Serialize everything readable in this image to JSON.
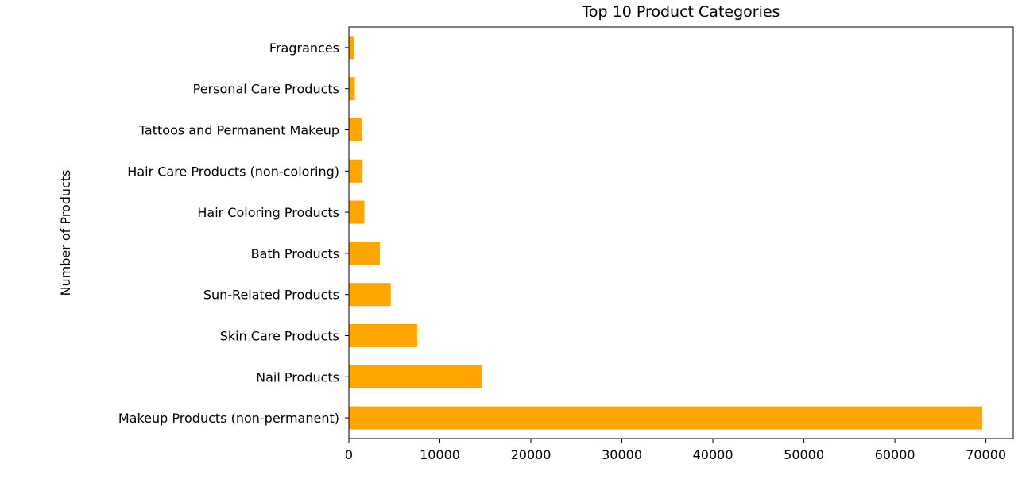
{
  "chart_data": {
    "type": "bar",
    "orientation": "horizontal",
    "title": "Top 10 Product Categories",
    "xlabel": "",
    "ylabel": "Number of Products",
    "categories": [
      "Makeup Products (non-permanent)",
      "Nail Products",
      "Skin Care Products ",
      "Sun-Related Products",
      "Bath Products",
      "Hair Coloring Products",
      "Hair Care Products (non-coloring)",
      "Tattoos and Permanent Makeup",
      "Personal Care Products",
      "Fragrances"
    ],
    "values": [
      69600,
      14600,
      7500,
      4600,
      3400,
      1700,
      1500,
      1400,
      650,
      550
    ],
    "xlim": [
      0,
      73000
    ],
    "xticks": [
      0,
      10000,
      20000,
      30000,
      40000,
      50000,
      60000,
      70000
    ],
    "xtick_labels": [
      "0",
      "10000",
      "20000",
      "30000",
      "40000",
      "50000",
      "60000",
      "70000"
    ],
    "bar_color": "#ffa500",
    "grid": false,
    "legend": "none"
  }
}
